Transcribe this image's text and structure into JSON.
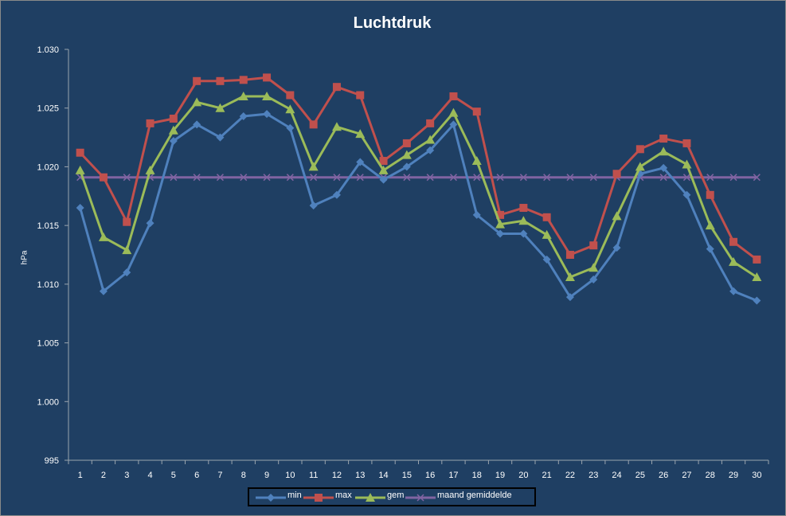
{
  "chart_data": {
    "type": "line",
    "title": "Luchtdruk",
    "xlabel": "",
    "ylabel": "hPa",
    "x": [
      1,
      2,
      3,
      4,
      5,
      6,
      7,
      8,
      9,
      10,
      11,
      12,
      13,
      14,
      15,
      16,
      17,
      18,
      19,
      20,
      21,
      22,
      23,
      24,
      25,
      26,
      27,
      28,
      29,
      30
    ],
    "ylim": [
      995,
      1030
    ],
    "ytick_labels": [
      "995",
      "1.000",
      "1.005",
      "1.010",
      "1.015",
      "1.020",
      "1.025",
      "1.030"
    ],
    "yticks": [
      995,
      1000,
      1005,
      1010,
      1015,
      1020,
      1025,
      1030
    ],
    "legend_position": "bottom",
    "grid": false,
    "series": [
      {
        "name": "min",
        "color": "#4f81bd",
        "marker": "diamond",
        "values": [
          1016.5,
          1009.4,
          1011.0,
          1015.2,
          1022.2,
          1023.6,
          1022.5,
          1024.3,
          1024.5,
          1023.3,
          1016.7,
          1017.6,
          1020.4,
          1018.9,
          1020.0,
          1021.4,
          1023.6,
          1015.9,
          1014.3,
          1014.3,
          1012.1,
          1008.9,
          1010.4,
          1013.1,
          1019.4,
          1019.9,
          1017.6,
          1013.0,
          1009.4,
          1008.6
        ]
      },
      {
        "name": "max",
        "color": "#c0504d",
        "marker": "square",
        "values": [
          1021.2,
          1019.1,
          1015.3,
          1023.7,
          1024.1,
          1027.3,
          1027.3,
          1027.4,
          1027.6,
          1026.1,
          1023.6,
          1026.8,
          1026.1,
          1020.5,
          1022.0,
          1023.7,
          1026.0,
          1024.7,
          1015.9,
          1016.5,
          1015.7,
          1012.5,
          1013.3,
          1019.4,
          1021.5,
          1022.4,
          1022.0,
          1017.6,
          1013.6,
          1012.1
        ]
      },
      {
        "name": "gem",
        "color": "#9bbb59",
        "marker": "triangle",
        "values": [
          1019.7,
          1014.0,
          1012.9,
          1019.7,
          1023.1,
          1025.5,
          1025.0,
          1026.0,
          1026.0,
          1024.9,
          1020.0,
          1023.4,
          1022.8,
          1019.7,
          1021.0,
          1022.3,
          1024.6,
          1020.5,
          1015.1,
          1015.4,
          1014.2,
          1010.6,
          1011.4,
          1015.8,
          1020.0,
          1021.3,
          1020.2,
          1015.0,
          1011.9,
          1010.6
        ]
      },
      {
        "name": "maand gemiddelde",
        "color": "#8064a2",
        "marker": "x",
        "values": [
          1019.1,
          1019.1,
          1019.1,
          1019.1,
          1019.1,
          1019.1,
          1019.1,
          1019.1,
          1019.1,
          1019.1,
          1019.1,
          1019.1,
          1019.1,
          1019.1,
          1019.1,
          1019.1,
          1019.1,
          1019.1,
          1019.1,
          1019.1,
          1019.1,
          1019.1,
          1019.1,
          1019.1,
          1019.1,
          1019.1,
          1019.1,
          1019.1,
          1019.1,
          1019.1
        ]
      }
    ]
  }
}
